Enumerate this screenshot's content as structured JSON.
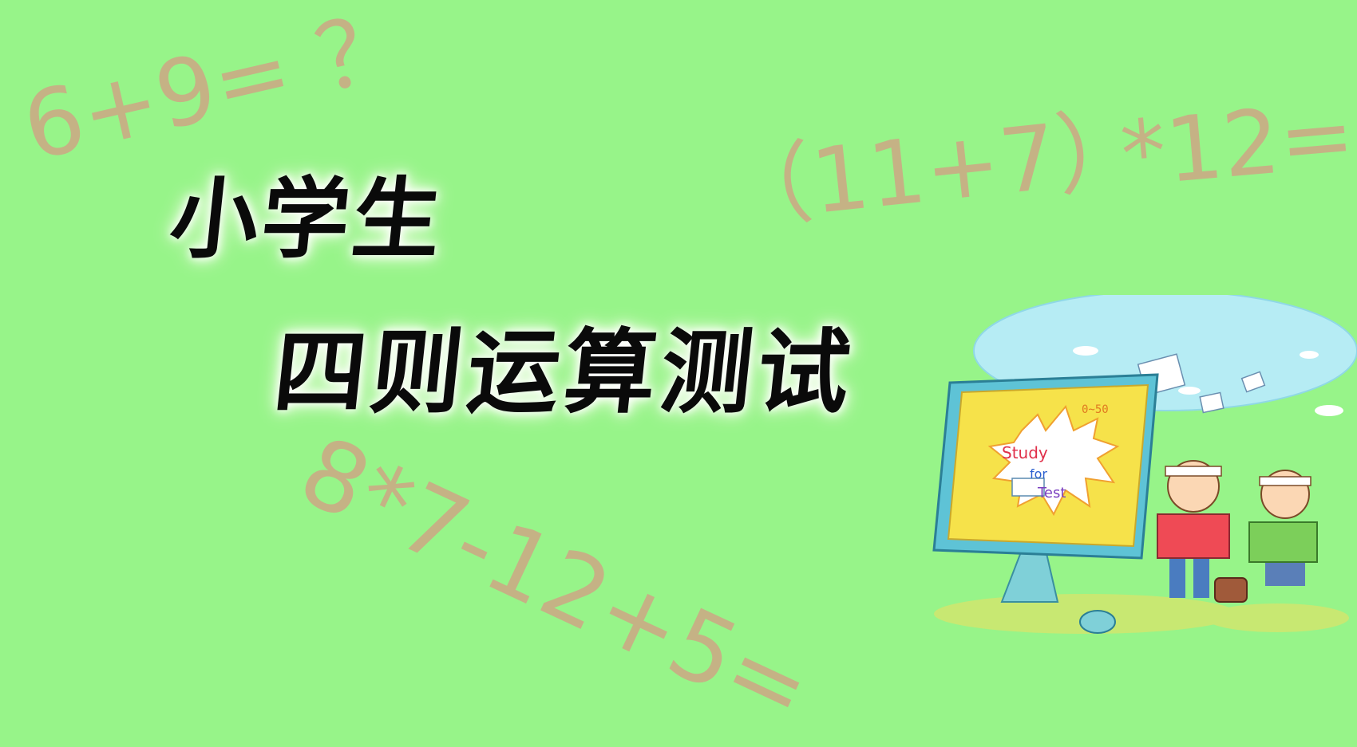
{
  "background_color": "#97f489",
  "equations": {
    "eq1": "6+9= ？",
    "eq2": "（11+7）",
    "eq3": "*12=",
    "eq4": "8*7-12+5="
  },
  "title": {
    "line1": "小学生",
    "line2": "四则运算测试"
  },
  "illustration": {
    "range_label": "0~50",
    "badge_line1": "Study",
    "badge_line2": "for",
    "badge_line3": "Test"
  }
}
